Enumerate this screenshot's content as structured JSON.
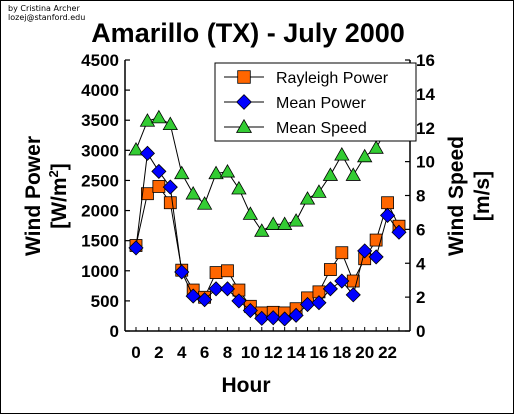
{
  "credit": {
    "line1": "by Cristina Archer",
    "line2": "lozej@stanford.edu"
  },
  "chart_data": {
    "type": "line",
    "title": "Amarillo (TX) - July 2000",
    "xlabel": "Hour",
    "ylabel_left": "Wind Power",
    "ylabel_left_unit": "[W/m²]",
    "ylabel_left_unit_parts": {
      "pre": "[W/m",
      "sup": "2",
      "post": "]"
    },
    "ylabel_right": "Wind Speed",
    "ylabel_right_unit": "[m/s]",
    "x": [
      0,
      1,
      2,
      3,
      4,
      5,
      6,
      7,
      8,
      9,
      10,
      11,
      12,
      13,
      14,
      15,
      16,
      17,
      18,
      19,
      20,
      21,
      22,
      23
    ],
    "xlim": [
      0,
      23
    ],
    "x_tick_labels": [
      "0",
      "2",
      "4",
      "6",
      "8",
      "10",
      "12",
      "14",
      "16",
      "18",
      "20",
      "22"
    ],
    "ylim_left": [
      0,
      4500
    ],
    "y_ticks_left": [
      "0",
      "500",
      "1000",
      "1500",
      "2000",
      "2500",
      "3000",
      "3500",
      "4000",
      "4500"
    ],
    "ylim_right": [
      0,
      16
    ],
    "y_ticks_right": [
      "0",
      "2",
      "4",
      "6",
      "8",
      "10",
      "12",
      "14",
      "16"
    ],
    "grid": false,
    "legend_position": "top-right",
    "series": [
      {
        "name": "Rayleigh Power",
        "axis": "left",
        "marker": "square",
        "color": "#ff6600",
        "values": [
          1420,
          2280,
          2400,
          2130,
          1010,
          680,
          560,
          970,
          1000,
          680,
          410,
          300,
          310,
          300,
          370,
          550,
          650,
          1020,
          1300,
          830,
          1200,
          1510,
          2130,
          1740
        ]
      },
      {
        "name": "Mean Power",
        "axis": "left",
        "marker": "diamond",
        "color": "#0000ff",
        "values": [
          1380,
          2950,
          2650,
          2390,
          980,
          580,
          520,
          700,
          700,
          500,
          340,
          210,
          220,
          200,
          260,
          440,
          470,
          700,
          830,
          600,
          1330,
          1230,
          1920,
          1640
        ]
      },
      {
        "name": "Mean Speed",
        "axis": "right",
        "marker": "triangle",
        "color": "#33cc33",
        "values": [
          10.7,
          12.4,
          12.6,
          12.2,
          9.3,
          8.1,
          7.5,
          9.3,
          9.4,
          8.4,
          6.9,
          5.9,
          6.3,
          6.3,
          6.5,
          7.8,
          8.2,
          9.2,
          10.4,
          9.2,
          10.3,
          10.8,
          12.0,
          12.3
        ]
      }
    ]
  }
}
